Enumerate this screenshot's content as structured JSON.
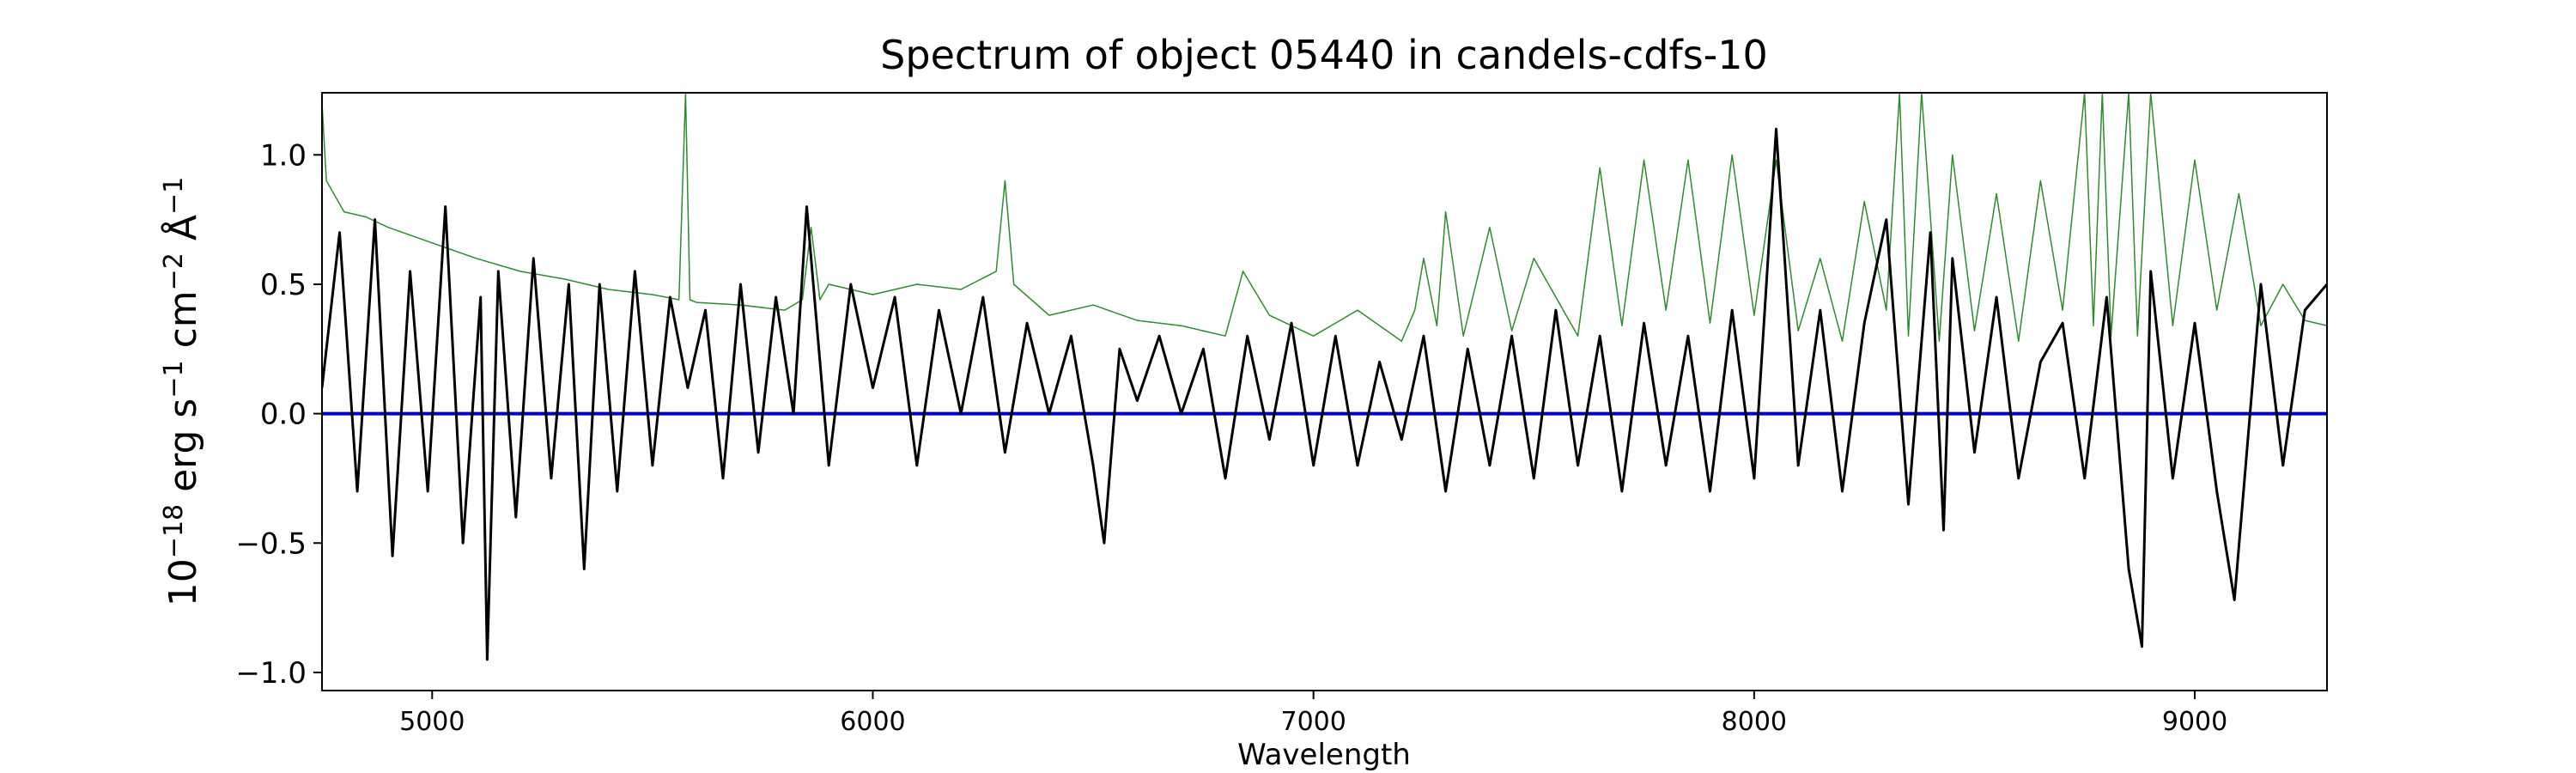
{
  "chart_data": {
    "type": "line",
    "title": "Spectrum of object 05440 in candels-cdfs-10",
    "xlabel": "Wavelength",
    "ylabel": {
      "base": "10",
      "exp1": "−18",
      "erg": " erg s",
      "exp2": "−1",
      "cm": " cm",
      "exp3": "−2",
      "ang": " Å",
      "exp4": "−1"
    },
    "xlim": [
      4750,
      9300
    ],
    "ylim": [
      -1.07,
      1.24
    ],
    "x_ticks": [
      5000,
      6000,
      7000,
      8000,
      9000
    ],
    "x_tick_labels": [
      "5000",
      "6000",
      "7000",
      "8000",
      "9000"
    ],
    "y_ticks": [
      -1.0,
      -0.5,
      0.0,
      0.5,
      1.0
    ],
    "y_tick_labels": [
      "−1.0",
      "−0.5",
      "0.0",
      "0.5",
      "1.0"
    ],
    "grid": false,
    "colors": {
      "flux": "#000000",
      "error": "#2e8b2e",
      "zero": "#0000cc",
      "frame": "#000000"
    },
    "series": [
      {
        "role": "flux",
        "x": [
          4750,
          4790,
          4830,
          4870,
          4910,
          4950,
          4990,
          5030,
          5070,
          5110,
          5125,
          5150,
          5190,
          5230,
          5270,
          5310,
          5345,
          5380,
          5420,
          5460,
          5500,
          5540,
          5580,
          5620,
          5660,
          5700,
          5740,
          5780,
          5820,
          5850,
          5900,
          5950,
          6000,
          6050,
          6100,
          6150,
          6200,
          6250,
          6300,
          6350,
          6400,
          6450,
          6500,
          6525,
          6560,
          6600,
          6650,
          6700,
          6750,
          6800,
          6850,
          6900,
          6950,
          7000,
          7050,
          7100,
          7150,
          7200,
          7250,
          7300,
          7350,
          7400,
          7450,
          7500,
          7550,
          7600,
          7650,
          7700,
          7750,
          7800,
          7850,
          7900,
          7950,
          8000,
          8050,
          8100,
          8150,
          8200,
          8250,
          8300,
          8350,
          8400,
          8430,
          8450,
          8500,
          8550,
          8600,
          8650,
          8700,
          8750,
          8800,
          8850,
          8880,
          8900,
          8950,
          9000,
          9050,
          9090,
          9150,
          9200,
          9250,
          9300
        ],
        "y": [
          0.1,
          0.7,
          -0.3,
          0.75,
          -0.55,
          0.55,
          -0.3,
          0.8,
          -0.5,
          0.45,
          -0.95,
          0.55,
          -0.4,
          0.6,
          -0.25,
          0.5,
          -0.6,
          0.5,
          -0.3,
          0.55,
          -0.2,
          0.45,
          0.1,
          0.4,
          -0.25,
          0.5,
          -0.15,
          0.45,
          0.0,
          0.8,
          -0.2,
          0.5,
          0.1,
          0.45,
          -0.2,
          0.4,
          0.0,
          0.45,
          -0.15,
          0.35,
          0.0,
          0.3,
          -0.2,
          -0.5,
          0.25,
          0.05,
          0.3,
          0.0,
          0.25,
          -0.25,
          0.3,
          -0.1,
          0.35,
          -0.2,
          0.3,
          -0.2,
          0.2,
          -0.1,
          0.3,
          -0.3,
          0.25,
          -0.2,
          0.3,
          -0.25,
          0.4,
          -0.2,
          0.3,
          -0.3,
          0.35,
          -0.2,
          0.3,
          -0.3,
          0.4,
          -0.25,
          1.1,
          -0.2,
          0.4,
          -0.3,
          0.35,
          0.75,
          -0.35,
          0.7,
          -0.45,
          0.6,
          -0.15,
          0.45,
          -0.25,
          0.2,
          0.35,
          -0.25,
          0.45,
          -0.6,
          -0.9,
          0.55,
          -0.25,
          0.35,
          -0.3,
          -0.72,
          0.5,
          -0.2,
          0.4,
          0.5
        ]
      },
      {
        "role": "error",
        "x": [
          4750,
          4760,
          4800,
          4850,
          4900,
          5000,
          5100,
          5200,
          5300,
          5400,
          5500,
          5560,
          5575,
          5585,
          5600,
          5700,
          5800,
          5840,
          5860,
          5880,
          5900,
          6000,
          6100,
          6200,
          6280,
          6300,
          6320,
          6400,
          6500,
          6600,
          6700,
          6800,
          6840,
          6900,
          7000,
          7100,
          7200,
          7230,
          7250,
          7280,
          7300,
          7340,
          7400,
          7450,
          7500,
          7600,
          7650,
          7700,
          7750,
          7800,
          7850,
          7900,
          7950,
          8000,
          8050,
          8100,
          8150,
          8200,
          8250,
          8300,
          8330,
          8350,
          8380,
          8420,
          8450,
          8500,
          8550,
          8600,
          8650,
          8700,
          8750,
          8770,
          8790,
          8810,
          8850,
          8870,
          8900,
          8950,
          9000,
          9050,
          9100,
          9150,
          9200,
          9250,
          9300
        ],
        "y": [
          1.2,
          0.9,
          0.78,
          0.76,
          0.72,
          0.66,
          0.6,
          0.55,
          0.52,
          0.48,
          0.46,
          0.44,
          1.24,
          0.44,
          0.43,
          0.42,
          0.4,
          0.44,
          0.72,
          0.44,
          0.5,
          0.46,
          0.5,
          0.48,
          0.55,
          0.9,
          0.5,
          0.38,
          0.42,
          0.36,
          0.34,
          0.3,
          0.55,
          0.38,
          0.3,
          0.4,
          0.28,
          0.4,
          0.6,
          0.34,
          0.78,
          0.3,
          0.72,
          0.32,
          0.6,
          0.3,
          0.95,
          0.34,
          0.98,
          0.4,
          0.98,
          0.35,
          1.0,
          0.38,
          0.98,
          0.32,
          0.6,
          0.28,
          0.82,
          0.4,
          1.24,
          0.3,
          1.24,
          0.28,
          1.0,
          0.32,
          0.85,
          0.28,
          0.9,
          0.4,
          1.24,
          0.34,
          1.24,
          0.3,
          1.24,
          0.3,
          1.24,
          0.34,
          0.98,
          0.4,
          0.85,
          0.34,
          0.5,
          0.36,
          0.34
        ]
      }
    ]
  }
}
